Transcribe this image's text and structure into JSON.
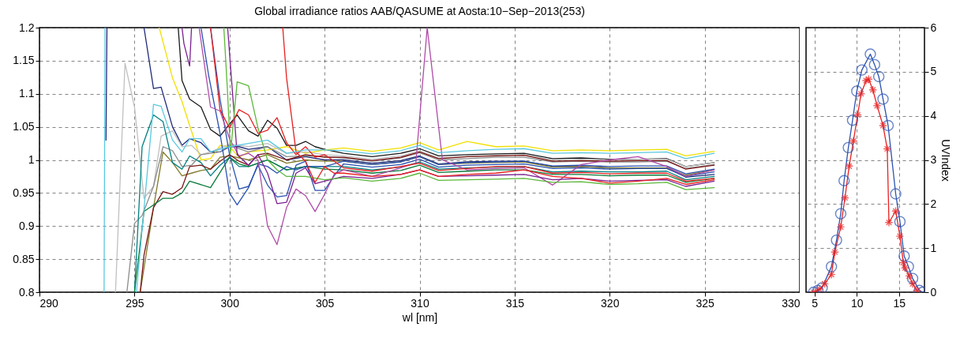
{
  "chart_data": [
    {
      "type": "line",
      "title": "Global irradiance ratios AAB/QASUME at Aosta:10−Sep−2013(253)",
      "xlabel": "wl [nm]",
      "xlim": [
        290,
        330
      ],
      "xticks": [
        290,
        295,
        300,
        305,
        310,
        315,
        320,
        325,
        330
      ],
      "ylim": [
        0.8,
        1.2
      ],
      "yticks": [
        0.8,
        0.85,
        0.9,
        0.95,
        1,
        1.05,
        1.1,
        1.15,
        1.2
      ],
      "grid": true,
      "series": [
        {
          "color": "#5ac8e0",
          "x": [
            293.4,
            293.45
          ],
          "values": [
            0.8,
            1.2
          ]
        },
        {
          "color": "#1f2a7a",
          "x": [
            293.5,
            293.55
          ],
          "values": [
            1.03,
            1.2
          ]
        },
        {
          "color": "#1f2a7a",
          "x": [
            295.5,
            296,
            296.4,
            297,
            297.5,
            297.9,
            298.5,
            299,
            299.5,
            300,
            300.5,
            301,
            302,
            303,
            304,
            305,
            306,
            307.5,
            309,
            310,
            311,
            312.5,
            314,
            315.5,
            317,
            318.5,
            320,
            321.5,
            323,
            324,
            325.5
          ],
          "values": [
            1.2,
            1.108,
            1.11,
            1.05,
            1.022,
            1.032,
            1.026,
            1.012,
            1.012,
            1.02,
            1.02,
            1.016,
            1.02,
            1.0,
            1.005,
            1.0,
            1.0,
            0.995,
            0.999,
            1.006,
            0.994,
            0.997,
            0.998,
            0.998,
            0.99,
            0.99,
            0.988,
            0.988,
            0.988,
            0.974,
            0.978
          ]
        },
        {
          "color": "#1a1a1a",
          "x": [
            297.3,
            297.5,
            297.9,
            298.5,
            299,
            299.5,
            300,
            300.4,
            301,
            301.5,
            302,
            302.5,
            303,
            303.5,
            304,
            304.5,
            305,
            306,
            307.5,
            309,
            310,
            311,
            312.5,
            314,
            315.5,
            317,
            318.5,
            320,
            321.5,
            323,
            324,
            325.5
          ],
          "values": [
            1.2,
            1.12,
            1.092,
            1.08,
            1.046,
            1.036,
            1.054,
            1.068,
            1.044,
            1.036,
            1.06,
            1.048,
            1.022,
            1.022,
            1.028,
            1.02,
            1.016,
            1.01,
            1.005,
            1.01,
            1.017,
            1.006,
            1.008,
            1.009,
            1.01,
            1.002,
            1.003,
            1.001,
            1.001,
            1.002,
            0.99,
            0.996
          ]
        },
        {
          "color": "#f2e000",
          "x": [
            296.3,
            297,
            297.5,
            297.9,
            298.5,
            299,
            299.5,
            300,
            300.5,
            301,
            302,
            303,
            304,
            305,
            306,
            307.5,
            309,
            310,
            311,
            312.5,
            314,
            315.5,
            317,
            318.5,
            320,
            321.5,
            323,
            324,
            325.5
          ],
          "values": [
            1.2,
            1.124,
            1.088,
            1.052,
            1.0,
            1.002,
            1.022,
            1.02,
            1.004,
            1.012,
            1.015,
            1.02,
            1.01,
            1.015,
            1.018,
            1.013,
            1.018,
            1.026,
            1.015,
            1.028,
            1.02,
            1.021,
            1.014,
            1.015,
            1.014,
            1.015,
            1.016,
            1.006,
            1.013
          ]
        },
        {
          "color": "#c0c0c0",
          "x": [
            294,
            294.5,
            295,
            295.5,
            296,
            296.4,
            297,
            297.5,
            298,
            298.5,
            299,
            300,
            301,
            302,
            303,
            304,
            305,
            306,
            307.5,
            309,
            310,
            311,
            312.5,
            314,
            315.5,
            317,
            318.5,
            320,
            321.5,
            323,
            324,
            325.5
          ],
          "values": [
            0.8,
            1.146,
            1.08,
            0.942,
            0.96,
            1.036,
            1.044,
            1.02,
            1.022,
            1.008,
            1.012,
            1.024,
            1.02,
            1.025,
            1.01,
            1.012,
            1.008,
            1.006,
            1.001,
            1.006,
            1.014,
            1.003,
            1.005,
            1.007,
            1.008,
            1.0,
            1.001,
            1.0,
            1.001,
            1.001,
            0.99,
            0.996
          ]
        },
        {
          "color": "#8c8c8c",
          "x": [
            294.6,
            295,
            295.4,
            296,
            296.5,
            297,
            297.5,
            298,
            298.5,
            299.5,
            300,
            301,
            302,
            303,
            304,
            305,
            306,
            307.5,
            309,
            310,
            311,
            312.5,
            314,
            315.5,
            317,
            318.5,
            320,
            321.5,
            323,
            324,
            325.5
          ],
          "values": [
            0.8,
            0.904,
            0.916,
            0.96,
            1.02,
            1.014,
            0.99,
            0.992,
            1.008,
            1.012,
            1.022,
            1.012,
            1.02,
            1.005,
            1.006,
            1.005,
            1.003,
            0.998,
            1.003,
            1.011,
            1.0,
            1.002,
            1.004,
            1.004,
            0.997,
            0.998,
            0.997,
            0.997,
            0.998,
            0.987,
            0.993
          ]
        },
        {
          "color": "#807a2a",
          "x": [
            295.3,
            296,
            296.5,
            297,
            297.5,
            298,
            298.5,
            299,
            299.5,
            300,
            301,
            302,
            303,
            304,
            305,
            306,
            307.5,
            309,
            310,
            311,
            312.5,
            314,
            315.5,
            317,
            318.5,
            320,
            321.5,
            323,
            324,
            325.5
          ],
          "values": [
            0.8,
            0.928,
            1.012,
            0.996,
            0.976,
            0.98,
            0.984,
            0.986,
            1.004,
            1.006,
            1.0,
            1.008,
            0.995,
            1.0,
            0.998,
            0.998,
            0.993,
            0.997,
            1.005,
            0.993,
            0.995,
            0.996,
            0.997,
            0.989,
            0.99,
            0.988,
            0.988,
            0.988,
            0.977,
            0.985
          ]
        },
        {
          "color": "#008080",
          "x": [
            295,
            295.4,
            296,
            296.5,
            297,
            297.5,
            297.9,
            298.5,
            299,
            299.5,
            300,
            300.5,
            301,
            302,
            303,
            304,
            305,
            306,
            307.5,
            309,
            310,
            311,
            312.5,
            314,
            315.5,
            317,
            318.5,
            320,
            321.5,
            323,
            324,
            325.5
          ],
          "values": [
            0.8,
            1.02,
            1.068,
            1.058,
            0.996,
            0.986,
            1.006,
            0.996,
            0.976,
            0.992,
            1.004,
            0.99,
            0.99,
            1.0,
            0.985,
            0.99,
            0.99,
            0.99,
            0.985,
            0.989,
            0.997,
            0.986,
            0.988,
            0.989,
            0.99,
            0.982,
            0.983,
            0.982,
            0.982,
            0.983,
            0.97,
            0.975
          ]
        },
        {
          "color": "#7a1414",
          "x": [
            295.3,
            295.5,
            296,
            296.5,
            297,
            297.5,
            297.9,
            298.5,
            299,
            299.5,
            300,
            300.5,
            301,
            301.5,
            302,
            303,
            304,
            305,
            306,
            307.5,
            309,
            310,
            311,
            312.5,
            314,
            315.5,
            317,
            318.5,
            320,
            321.5,
            323,
            324,
            325.5
          ],
          "values": [
            0.8,
            0.856,
            0.928,
            0.952,
            0.948,
            0.958,
            0.99,
            0.992,
            0.986,
            0.998,
            1.008,
            0.998,
            0.992,
            1.008,
            1.01,
            1.0,
            1.008,
            1.004,
            1.004,
            0.999,
            1.004,
            1.012,
            1.002,
            1.005,
            1.006,
            1.007,
            0.998,
            0.999,
            0.998,
            0.999,
            0.999,
            0.986,
            0.992
          ]
        },
        {
          "color": "#0a7a3a",
          "x": [
            295,
            295.5,
            296,
            296.5,
            297,
            297.5,
            297.9,
            299,
            300,
            300.5,
            301,
            302,
            303,
            304,
            305,
            306,
            307.5,
            309,
            310,
            311,
            312.5,
            314,
            315.5,
            317,
            318.5,
            320,
            321.5,
            323,
            324,
            325.5
          ],
          "values": [
            0.8,
            0.922,
            0.932,
            0.942,
            0.942,
            0.95,
            0.968,
            0.958,
            1.004,
            0.994,
            0.99,
            1.0,
            0.985,
            0.99,
            0.986,
            0.985,
            0.98,
            0.984,
            0.992,
            0.981,
            0.983,
            0.985,
            0.985,
            0.978,
            0.978,
            0.976,
            0.977,
            0.977,
            0.966,
            0.972
          ]
        },
        {
          "color": "#2a52b0",
          "x": [
            298.5,
            298.9,
            299.5,
            300,
            300.4,
            301,
            301.5,
            302,
            302.5,
            303,
            303.5,
            304,
            305,
            306,
            307.5,
            309,
            310,
            311,
            312.5,
            314,
            315.5,
            317,
            318.5,
            320,
            321.5,
            323,
            324,
            325.5
          ],
          "values": [
            1.2,
            1.128,
            1.04,
            0.95,
            0.932,
            0.958,
            0.994,
            0.99,
            0.98,
            0.99,
            0.985,
            0.99,
            0.99,
            0.998,
            0.993,
            0.997,
            1.005,
            0.993,
            0.996,
            0.997,
            0.998,
            0.991,
            0.992,
            0.99,
            0.991,
            0.991,
            0.979,
            0.986
          ]
        },
        {
          "color": "#2a52b0",
          "x": [
            299,
            299.5,
            300,
            300.5,
            301,
            301.5,
            302,
            302.5,
            303,
            303.5,
            304,
            304.5,
            305,
            305.5,
            306,
            307.5,
            309,
            310,
            311,
            312.5,
            314,
            315.5,
            317,
            318.5,
            320,
            321.5,
            323,
            324,
            325.5
          ],
          "values": [
            1.2,
            1.092,
            1.008,
            0.956,
            0.96,
            0.992,
            0.962,
            0.944,
            0.946,
            0.992,
            0.998,
            0.954,
            0.954,
            0.976,
            0.994,
            0.989,
            0.993,
            1.001,
            0.989,
            0.992,
            0.993,
            0.994,
            0.987,
            0.988,
            0.986,
            0.987,
            0.987,
            0.975,
            0.982
          ]
        },
        {
          "color": "#b04aa8",
          "x": [
            298.4,
            299,
            299.5,
            300,
            300.5,
            301,
            301.5,
            302,
            302.5,
            303,
            303.5,
            304,
            304.5,
            305,
            305.5,
            306,
            307.5,
            309,
            309.8,
            310.4,
            311.2,
            312.5,
            314,
            315.5,
            317,
            318.5,
            320,
            321.5,
            323,
            324,
            325.5
          ],
          "values": [
            1.2,
            1.08,
            1.074,
            1.032,
            1.006,
            1.01,
            1.0,
            0.9,
            0.872,
            0.928,
            0.956,
            0.946,
            0.922,
            0.948,
            0.978,
            0.985,
            0.975,
            0.988,
            0.995,
            1.2,
            1.0,
            0.985,
            0.987,
            0.988,
            0.962,
            0.993,
            1.0,
            1.005,
            0.99,
            0.975,
            0.985
          ]
        },
        {
          "color": "#7a2090",
          "x": [
            297.5,
            297.6,
            297.9,
            298
          ],
          "values": [
            1.2,
            1.176,
            1.142,
            1.2
          ]
        },
        {
          "color": "#7a2090",
          "x": [
            299.9,
            300.4,
            301,
            301.5,
            302,
            302.5,
            303,
            303.5,
            304,
            304.5,
            305,
            306,
            307.5,
            309,
            310,
            311,
            312.5,
            314,
            315.5,
            317,
            318.5,
            320,
            321.5,
            323,
            324,
            325.5
          ],
          "values": [
            1.2,
            1.008,
            0.992,
            1.008,
            0.98,
            0.934,
            0.936,
            0.98,
            0.988,
            0.964,
            0.968,
            0.975,
            0.972,
            0.978,
            0.985,
            0.975,
            0.976,
            0.977,
            0.978,
            0.97,
            0.972,
            0.968,
            0.969,
            0.97,
            0.96,
            0.968
          ]
        },
        {
          "color": "#5cb83a",
          "x": [
            299.7,
            299.9,
            300.05,
            300.4,
            301,
            301.5,
            302,
            302.5,
            303,
            304,
            305,
            306,
            307.5,
            309,
            310,
            311,
            312.5,
            314,
            315.5,
            317,
            318.5,
            320,
            321.5,
            323,
            324,
            325.5
          ],
          "values": [
            1.2,
            1.1,
            1.01,
            1.118,
            1.112,
            1.048,
            1.0,
            0.985,
            0.975,
            0.975,
            0.97,
            0.973,
            0.968,
            0.972,
            0.98,
            0.969,
            0.97,
            0.971,
            0.972,
            0.966,
            0.967,
            0.963,
            0.964,
            0.966,
            0.955,
            0.958
          ]
        },
        {
          "color": "#e82020",
          "x": [
            299,
            299.5,
            300,
            300.5,
            301,
            301.5,
            302,
            302.5,
            303,
            303.5,
            304,
            304.5,
            305,
            306,
            307.5,
            309,
            310,
            311,
            312.5,
            314,
            315.5,
            317,
            318.5,
            320,
            321.5,
            323,
            324,
            325.5
          ],
          "values": [
            1.2,
            1.076,
            1.048,
            1.076,
            1.068,
            1.04,
            1.045,
            1.064,
            1.026,
            1.008,
            1.02,
            1.004,
            1.008,
            0.988,
            0.983,
            0.99,
            0.995,
            0.984,
            0.987,
            0.99,
            0.99,
            0.98,
            0.981,
            0.979,
            0.98,
            0.98,
            0.968,
            0.972
          ]
        },
        {
          "color": "#e82020",
          "x": [
            302.8,
            303,
            303.5,
            304,
            304.5,
            305,
            305.5,
            306,
            307.5,
            309,
            310,
            311,
            312.5,
            314,
            315.5,
            317,
            318.5,
            320,
            321.5,
            323,
            324,
            325.5
          ],
          "values": [
            1.2,
            1.124,
            1.012,
            0.998,
            0.966,
            0.99,
            0.98,
            0.98,
            0.975,
            0.978,
            0.985,
            0.975,
            0.978,
            0.98,
            0.985,
            0.975,
            0.972,
            0.965,
            0.968,
            0.972,
            0.963,
            0.97
          ]
        },
        {
          "color": "#5ac8e0",
          "x": [
            295.1,
            296,
            296.4,
            297,
            297.5,
            297.9,
            298.5,
            299,
            300,
            301,
            302,
            303,
            304,
            305,
            306,
            307.5,
            309,
            310,
            311,
            312.5,
            314,
            315.5,
            317,
            318.5,
            320,
            321.5,
            323,
            324,
            325.5
          ],
          "values": [
            0.8,
            1.084,
            1.081,
            1.03,
            1.012,
            1.032,
            1.032,
            1.012,
            1.02,
            1.025,
            1.03,
            1.01,
            1.015,
            1.015,
            1.014,
            1.009,
            1.014,
            1.022,
            1.011,
            1.014,
            1.016,
            1.017,
            1.01,
            1.011,
            1.01,
            1.011,
            1.012,
            1.002,
            1.01
          ]
        }
      ]
    },
    {
      "type": "line",
      "y2label": "UVIndex",
      "xlim": [
        4,
        18
      ],
      "xticks": [
        5,
        10,
        15
      ],
      "y2lim": [
        0,
        6
      ],
      "y2ticks": [
        0,
        1,
        2,
        3,
        4,
        5,
        6
      ],
      "grid": true,
      "series": [
        {
          "color": "#2a52b0",
          "marker": "circle",
          "axis": "y2",
          "x": [
            4.9,
            5.4,
            5.9,
            7.0,
            7.6,
            8.1,
            8.5,
            9.0,
            9.5,
            10.0,
            10.6,
            11.6,
            12.1,
            12.6,
            13.1,
            13.7,
            14.6,
            15.1,
            15.6,
            16.1,
            16.6,
            17.4,
            17.8
          ],
          "values": [
            0,
            0.04,
            0.1,
            0.58,
            1.18,
            1.78,
            2.53,
            3.28,
            3.9,
            4.56,
            5.04,
            5.4,
            5.16,
            4.89,
            4.38,
            3.78,
            2.23,
            1.6,
            0.82,
            0.58,
            0.31,
            0.04,
            0
          ]
        },
        {
          "color": "#e82020",
          "marker": "cross",
          "axis": "y2",
          "x": [
            4.9,
            5.6,
            6.2,
            7.0,
            7.4,
            8.1,
            8.6,
            9.1,
            9.6,
            10.1,
            10.5,
            11.1,
            11.4,
            11.9,
            12.4,
            13.1,
            13.6,
            13.8,
            14.6,
            15.1,
            15.5,
            15.7,
            16.2,
            16.6,
            17.1
          ],
          "values": [
            0,
            0.07,
            0.19,
            0.4,
            0.91,
            1.48,
            2.14,
            2.86,
            3.43,
            4.02,
            4.5,
            4.8,
            4.83,
            4.59,
            4.23,
            3.78,
            3.25,
            1.58,
            1.84,
            1.27,
            0.67,
            0.55,
            0.37,
            0.19,
            0.04
          ]
        }
      ]
    }
  ]
}
